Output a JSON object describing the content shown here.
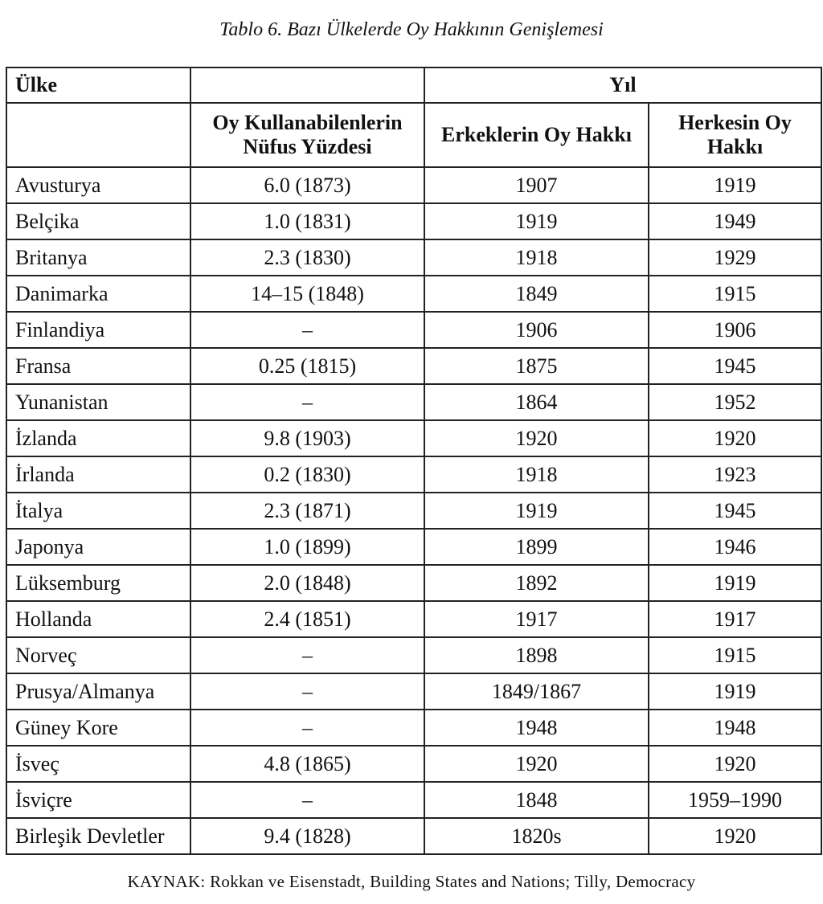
{
  "caption": "Tablo 6. Bazı Ülkelerde Oy Hakkının Genişlemesi",
  "table": {
    "head_country": "Ülke",
    "head_year": "Yıl",
    "head_percent": "Oy Kullanabilenlerin Nüfus Yüzdesi",
    "head_men": "Erkeklerin Oy Hakkı",
    "head_all": "Herkesin Oy Hakkı",
    "rows": [
      {
        "country": "Avusturya",
        "percent": "6.0 (1873)",
        "men": "1907",
        "all": "1919"
      },
      {
        "country": "Belçika",
        "percent": "1.0 (1831)",
        "men": "1919",
        "all": "1949"
      },
      {
        "country": "Britanya",
        "percent": "2.3 (1830)",
        "men": "1918",
        "all": "1929"
      },
      {
        "country": "Danimarka",
        "percent": "14–15 (1848)",
        "men": "1849",
        "all": "1915"
      },
      {
        "country": "Finlandiya",
        "percent": "–",
        "men": "1906",
        "all": "1906"
      },
      {
        "country": "Fransa",
        "percent": "0.25 (1815)",
        "men": "1875",
        "all": "1945"
      },
      {
        "country": "Yunanistan",
        "percent": "–",
        "men": "1864",
        "all": "1952"
      },
      {
        "country": "İzlanda",
        "percent": "9.8 (1903)",
        "men": "1920",
        "all": "1920"
      },
      {
        "country": "İrlanda",
        "percent": "0.2 (1830)",
        "men": "1918",
        "all": "1923"
      },
      {
        "country": "İtalya",
        "percent": "2.3 (1871)",
        "men": "1919",
        "all": "1945"
      },
      {
        "country": "Japonya",
        "percent": "1.0 (1899)",
        "men": "1899",
        "all": "1946"
      },
      {
        "country": "Lüksemburg",
        "percent": "2.0 (1848)",
        "men": "1892",
        "all": "1919"
      },
      {
        "country": "Hollanda",
        "percent": "2.4 (1851)",
        "men": "1917",
        "all": "1917"
      },
      {
        "country": "Norveç",
        "percent": "–",
        "men": "1898",
        "all": "1915"
      },
      {
        "country": "Prusya/Almanya",
        "percent": "–",
        "men": "1849/1867",
        "all": "1919"
      },
      {
        "country": "Güney Kore",
        "percent": "–",
        "men": "1948",
        "all": "1948"
      },
      {
        "country": "İsveç",
        "percent": "4.8 (1865)",
        "men": "1920",
        "all": "1920"
      },
      {
        "country": "İsviçre",
        "percent": "–",
        "men": "1848",
        "all": "1959–1990"
      },
      {
        "country": "Birleşik Devletler",
        "percent": "9.4 (1828)",
        "men": "1820s",
        "all": "1920"
      }
    ]
  },
  "source": "KAYNAK: Rokkan ve Eisenstadt, Building States and Nations; Tilly, Democracy"
}
